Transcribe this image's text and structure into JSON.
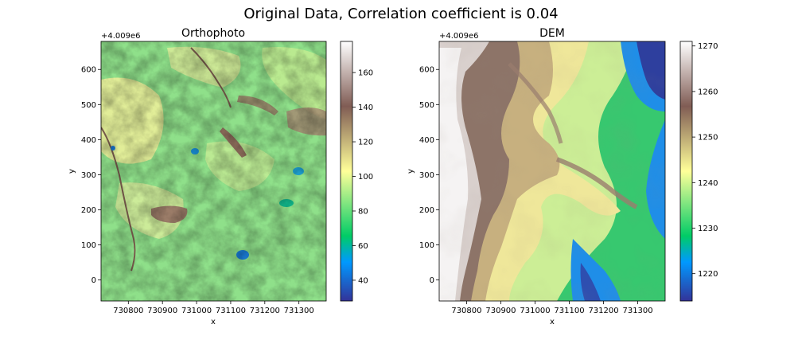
{
  "figure": {
    "suptitle": "Original Data, Correlation coefficient is 0.04"
  },
  "chart_data": [
    {
      "type": "heatmap",
      "title": "Orthophoto",
      "xlabel": "x",
      "ylabel": "y",
      "x_offset_label": "",
      "y_offset_label": "+4.009e6",
      "xlim": [
        730720,
        731380
      ],
      "ylim": [
        -60,
        680
      ],
      "x_ticks": [
        730800,
        730900,
        731000,
        731100,
        731200,
        731300
      ],
      "y_ticks": [
        0,
        100,
        200,
        300,
        400,
        500,
        600
      ],
      "colormap": "terrain",
      "colorbar": {
        "min": 28,
        "max": 178,
        "ticks": [
          40,
          60,
          80,
          100,
          120,
          140,
          160
        ]
      },
      "grid": false
    },
    {
      "type": "heatmap",
      "title": "DEM",
      "xlabel": "x",
      "ylabel": "y",
      "x_offset_label": "",
      "y_offset_label": "+4.009e6",
      "xlim": [
        730720,
        731380
      ],
      "ylim": [
        -60,
        680
      ],
      "x_ticks": [
        730800,
        730900,
        731000,
        731100,
        731200,
        731300
      ],
      "y_ticks": [
        0,
        100,
        200,
        300,
        400,
        500,
        600
      ],
      "colormap": "terrain",
      "colorbar": {
        "min": 1214,
        "max": 1271,
        "ticks": [
          1220,
          1230,
          1240,
          1250,
          1260,
          1270
        ]
      },
      "grid": false
    }
  ]
}
